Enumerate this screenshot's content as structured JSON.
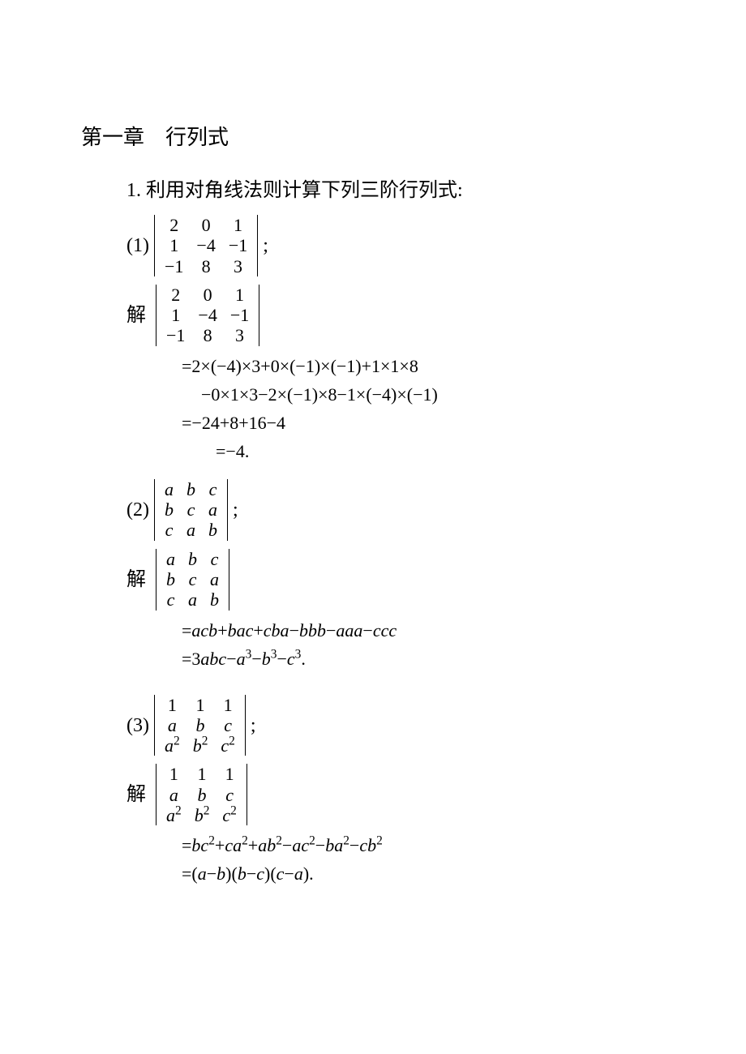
{
  "chapter": {
    "title": "第一章 行列式"
  },
  "problem1": {
    "statement": "1. 利用对角线法则计算下列三阶行列式:",
    "part1": {
      "label": "(1)",
      "matrix": [
        [
          "2",
          "0",
          "1"
        ],
        [
          "1",
          "−4",
          "−1"
        ],
        [
          "−1",
          "8",
          "3"
        ]
      ],
      "after": ";",
      "solution_label": "解",
      "step1": "=2×(−4)×3+0×(−1)×(−1)+1×1×8",
      "step2": "−0×1×3−2×(−1)×8−1×(−4)×(−1)",
      "step3": "=−24+8+16−4",
      "step4": "=−4."
    },
    "part2": {
      "label": "(2)",
      "matrix": [
        [
          "a",
          "b",
          "c"
        ],
        [
          "b",
          "c",
          "a"
        ],
        [
          "c",
          "a",
          "b"
        ]
      ],
      "after": ";",
      "solution_label": "解",
      "step1_html": "=<span class='it'>acb</span>+<span class='it'>bac</span>+<span class='it'>cba</span>−<span class='it'>bbb</span>−<span class='it'>aaa</span>−<span class='it'>ccc</span>",
      "step2_html": "=3<span class='it'>abc</span>−<span class='it'>a</span><sup>3</sup>−<span class='it'>b</span><sup>3</sup>−<span class='it'>c</span><sup>3</sup>."
    },
    "part3": {
      "label": "(3)",
      "matrix_html": [
        [
          "1",
          "1",
          "1"
        ],
        [
          "<span class='it'>a</span>",
          "<span class='it'>b</span>",
          "<span class='it'>c</span>"
        ],
        [
          "<span class='it'>a</span><sup>2</sup>",
          "<span class='it'>b</span><sup>2</sup>",
          "<span class='it'>c</span><sup>2</sup>"
        ]
      ],
      "after": ";",
      "solution_label": "解",
      "step1_html": "=<span class='it'>bc</span><sup>2</sup>+<span class='it'>ca</span><sup>2</sup>+<span class='it'>ab</span><sup>2</sup>−<span class='it'>ac</span><sup>2</sup>−<span class='it'>ba</span><sup>2</sup>−<span class='it'>cb</span><sup>2</sup>",
      "step2_html": "=(<span class='it'>a</span>−<span class='it'>b</span>)(<span class='it'>b</span>−<span class='it'>c</span>)(<span class='it'>c</span>−<span class='it'>a</span>)."
    }
  }
}
